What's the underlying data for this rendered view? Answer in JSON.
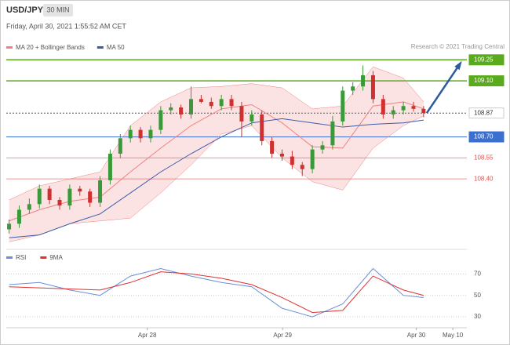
{
  "chart_data": {
    "type": "candlestick",
    "title": "USD/JPY",
    "timeframe": "30 MIN",
    "subtitle": "Friday, April 30, 2021 1:55:52 AM CET",
    "credit": "Research © 2021 Trading Central",
    "up_color": "#3a9a3a",
    "down_color": "#d03030",
    "xlim": [
      0,
      82
    ],
    "ylim": [
      107.97,
      109.33
    ],
    "xticks": [
      {
        "value": 25.1,
        "label": "Apr 28"
      },
      {
        "value": 49.2,
        "label": "Apr 29"
      },
      {
        "value": 73,
        "label": "Apr 30"
      },
      {
        "value": 79.5,
        "label": "May 10"
      }
    ],
    "x": [
      0.5,
      2.3,
      4.1,
      5.9,
      7.7,
      9.5,
      11.3,
      13.1,
      14.9,
      16.7,
      18.5,
      20.3,
      22.1,
      23.9,
      25.7,
      27.5,
      29.3,
      31.1,
      32.9,
      34.7,
      36.5,
      38.3,
      40.1,
      41.9,
      43.7,
      45.5,
      47.3,
      49.1,
      50.9,
      52.7,
      54.5,
      56.3,
      58.1,
      59.9,
      61.7,
      63.5,
      65.3,
      67.1,
      68.9,
      70.7,
      72.5,
      74.3
    ],
    "open": [
      108.04,
      108.08,
      108.18,
      108.22,
      108.33,
      108.25,
      108.21,
      108.33,
      108.31,
      108.23,
      108.39,
      108.58,
      108.69,
      108.75,
      108.69,
      108.75,
      108.89,
      108.91,
      108.86,
      108.97,
      108.95,
      108.92,
      108.97,
      108.92,
      108.81,
      108.86,
      108.67,
      108.58,
      108.56,
      108.5,
      108.47,
      108.61,
      108.64,
      108.81,
      109.03,
      109.06,
      109.14,
      108.97,
      108.86,
      108.89,
      108.92,
      108.9
    ],
    "high": [
      108.11,
      108.21,
      108.26,
      108.36,
      108.35,
      108.27,
      108.36,
      108.35,
      108.33,
      108.42,
      108.61,
      108.72,
      108.78,
      108.77,
      108.78,
      108.92,
      108.94,
      108.93,
      109.06,
      109.0,
      108.98,
      109.0,
      109.0,
      108.95,
      108.89,
      108.89,
      108.7,
      108.61,
      108.6,
      108.52,
      108.64,
      108.67,
      108.85,
      109.06,
      109.09,
      109.21,
      109.17,
      109.0,
      108.92,
      108.95,
      108.95,
      108.92
    ],
    "low": [
      108.01,
      108.05,
      108.15,
      108.19,
      108.22,
      108.18,
      108.18,
      108.28,
      108.2,
      108.2,
      108.36,
      108.55,
      108.66,
      108.66,
      108.66,
      108.72,
      108.86,
      108.83,
      108.83,
      108.94,
      108.9,
      108.89,
      108.89,
      108.7,
      108.78,
      108.64,
      108.55,
      108.53,
      108.47,
      108.42,
      108.44,
      108.58,
      108.61,
      108.78,
      109.0,
      109.03,
      108.94,
      108.83,
      108.83,
      108.86,
      108.88,
      108.84
    ],
    "close": [
      108.08,
      108.18,
      108.22,
      108.33,
      108.25,
      108.21,
      108.33,
      108.31,
      108.23,
      108.39,
      108.58,
      108.69,
      108.75,
      108.69,
      108.75,
      108.89,
      108.91,
      108.86,
      108.97,
      108.95,
      108.92,
      108.97,
      108.92,
      108.81,
      108.86,
      108.67,
      108.58,
      108.56,
      108.5,
      108.47,
      108.61,
      108.64,
      108.81,
      109.03,
      109.06,
      109.14,
      108.97,
      108.86,
      108.89,
      108.92,
      108.9,
      108.87
    ],
    "series": [
      {
        "name": "MA 20 + Bollinger Bands",
        "color": "#f08080",
        "x": [
          0.5,
          5.9,
          11.3,
          16.7,
          22.1,
          27.5,
          32.9,
          38.3,
          43.7,
          49.1,
          54.5,
          59.9,
          65.3,
          70.7,
          74.3
        ],
        "values": [
          108.1,
          108.18,
          108.24,
          108.27,
          108.45,
          108.62,
          108.78,
          108.9,
          108.93,
          108.8,
          108.63,
          108.62,
          108.92,
          108.95,
          108.9
        ],
        "upper": [
          108.25,
          108.35,
          108.4,
          108.45,
          108.78,
          108.95,
          109.05,
          109.06,
          109.08,
          109.05,
          108.9,
          108.92,
          109.2,
          109.12,
          108.95
        ],
        "lower": [
          107.95,
          108.0,
          108.08,
          108.1,
          108.12,
          108.3,
          108.5,
          108.72,
          108.78,
          108.55,
          108.38,
          108.32,
          108.62,
          108.78,
          108.85
        ]
      },
      {
        "name": "MA 50",
        "color": "#3b5ba9",
        "x": [
          0.5,
          5.9,
          11.3,
          16.7,
          22.1,
          27.5,
          32.9,
          38.3,
          43.7,
          49.1,
          54.5,
          59.9,
          65.3,
          70.7,
          74.3
        ],
        "values": [
          107.98,
          108.0,
          108.08,
          108.15,
          108.3,
          108.45,
          108.58,
          108.7,
          108.8,
          108.83,
          108.8,
          108.77,
          108.79,
          108.8,
          108.82
        ]
      }
    ],
    "levels": [
      {
        "value": 109.25,
        "label": "109.25",
        "color": "#5aaa1e",
        "style": "box"
      },
      {
        "value": 109.1,
        "label": "109.10",
        "color": "#5aaa1e",
        "style": "box"
      },
      {
        "value": 108.87,
        "label": "108.87",
        "color": "#555555",
        "style": "current"
      },
      {
        "value": 108.7,
        "label": "108.70",
        "color": "#3b6fd0",
        "style": "box"
      },
      {
        "value": 108.55,
        "label": "108.55",
        "color": "#e05050",
        "style": "text"
      },
      {
        "value": 108.4,
        "label": "108.40",
        "color": "#e05050",
        "style": "text"
      }
    ],
    "rsi": {
      "ylim": [
        22,
        90
      ],
      "yticks": [
        30,
        50,
        70
      ],
      "series": [
        {
          "name": "RSI",
          "color": "#6a8fd8",
          "x": [
            0.5,
            5.9,
            11.3,
            16.7,
            22.1,
            27.5,
            32.9,
            38.3,
            43.7,
            49.1,
            54.5,
            59.9,
            65.3,
            70.7,
            74.3
          ],
          "values": [
            60,
            62,
            55,
            50,
            68,
            75,
            68,
            62,
            58,
            38,
            30,
            42,
            75,
            50,
            48
          ]
        },
        {
          "name": "9MA",
          "color": "#e03030",
          "x": [
            0.5,
            5.9,
            11.3,
            16.7,
            22.1,
            27.5,
            32.9,
            38.3,
            43.7,
            49.1,
            54.5,
            59.9,
            65.3,
            70.7,
            74.3
          ],
          "values": [
            58,
            57,
            56,
            55,
            62,
            72,
            70,
            66,
            60,
            48,
            34,
            36,
            68,
            55,
            50
          ]
        }
      ]
    }
  }
}
